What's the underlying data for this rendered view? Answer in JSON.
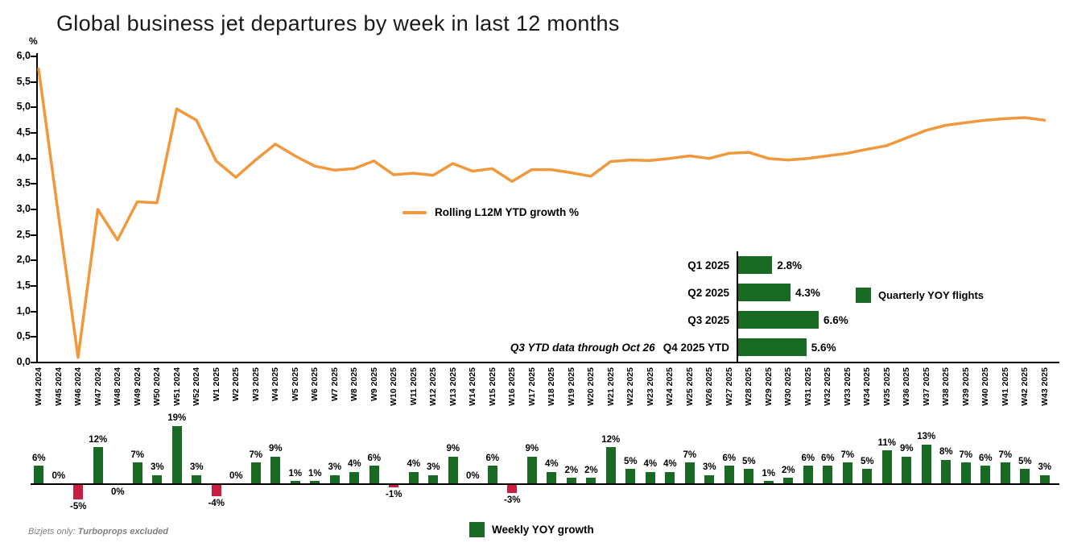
{
  "page": {
    "title": "Global business jet departures by week in last 12 months",
    "footnote_prefix": "Bizjets only: ",
    "footnote_bold": "Turboprops excluded"
  },
  "colors": {
    "orange": "#F2983C",
    "green": "#196B24",
    "red": "#C81E41",
    "axis": "#000000"
  },
  "chart_data": [
    {
      "type": "line",
      "name": "rolling-l12m-ytd-growth",
      "legend": "Rolling L12M YTD growth %",
      "unit_label": "%",
      "ylim": [
        0,
        6
      ],
      "ytick_step": 0.5,
      "ytick_labels_top_to_bottom": [
        "6,0",
        "5,5",
        "5,0",
        "4,5",
        "4,0",
        "3,5",
        "3,0",
        "2,5",
        "2,0",
        "1,5",
        "1,0",
        "0,5",
        "0,0"
      ],
      "grid": false,
      "legend_position": "center-left of plot",
      "x": [
        "W44 2024",
        "W45 2024",
        "W46 2024",
        "W47 2024",
        "W48 2024",
        "W49 2024",
        "W50 2024",
        "W51 2024",
        "W52 2024",
        "W1 2025",
        "W2 2025",
        "W3 2025",
        "W4 2025",
        "W5 2025",
        "W6 2025",
        "W7 2025",
        "W8 2025",
        "W9 2025",
        "W10 2025",
        "W11 2025",
        "W12 2025",
        "W13 2025",
        "W14 2025",
        "W15 2025",
        "W16 2025",
        "W17 2025",
        "W18 2025",
        "W19 2025",
        "W20 2025",
        "W21 2025",
        "W22 2025",
        "W23 2025",
        "W24 2025",
        "W25 2025",
        "W26 2025",
        "W27 2025",
        "W28 2025",
        "W29 2025",
        "W30 2025",
        "W31 2025",
        "W32 2025",
        "W33 2025",
        "W34 2025",
        "W35 2025",
        "W36 2025",
        "W37 2025",
        "W38 2025",
        "W39 2025",
        "W40 2025",
        "W41 2025",
        "W42 2025",
        "W43 2025"
      ],
      "values": [
        5.75,
        2.9,
        0.1,
        3.0,
        2.4,
        3.15,
        3.13,
        4.97,
        4.75,
        3.95,
        3.63,
        3.97,
        4.28,
        4.05,
        3.85,
        3.77,
        3.8,
        3.95,
        3.68,
        3.71,
        3.67,
        3.9,
        3.75,
        3.8,
        3.55,
        3.78,
        3.78,
        3.72,
        3.65,
        3.94,
        3.97,
        3.96,
        4.0,
        4.05,
        4.0,
        4.1,
        4.12,
        4.0,
        3.97,
        4.0,
        4.05,
        4.1,
        4.18,
        4.25,
        4.4,
        4.55,
        4.65,
        4.7,
        4.75,
        4.78,
        4.8,
        4.75
      ]
    },
    {
      "type": "bar",
      "name": "weekly-yoy-growth",
      "legend": "Weekly YOY growth",
      "positive_color": "#196B24",
      "negative_color": "#C81E41",
      "categories": [
        "W44 2024",
        "W45 2024",
        "W46 2024",
        "W47 2024",
        "W48 2024",
        "W49 2024",
        "W50 2024",
        "W51 2024",
        "W52 2024",
        "W1 2025",
        "W2 2025",
        "W3 2025",
        "W4 2025",
        "W5 2025",
        "W6 2025",
        "W7 2025",
        "W8 2025",
        "W9 2025",
        "W10 2025",
        "W11 2025",
        "W12 2025",
        "W13 2025",
        "W14 2025",
        "W15 2025",
        "W16 2025",
        "W17 2025",
        "W18 2025",
        "W19 2025",
        "W20 2025",
        "W21 2025",
        "W22 2025",
        "W23 2025",
        "W24 2025",
        "W25 2025",
        "W26 2025",
        "W27 2025",
        "W28 2025",
        "W29 2025",
        "W30 2025",
        "W31 2025",
        "W32 2025",
        "W33 2025",
        "W34 2025",
        "W35 2025",
        "W36 2025",
        "W37 2025",
        "W38 2025",
        "W39 2025",
        "W40 2025",
        "W41 2025",
        "W42 2025",
        "W43 2025"
      ],
      "values": [
        6,
        0.2,
        -5,
        12,
        -0.25,
        7,
        3,
        19,
        3,
        -4,
        0.2,
        7,
        9,
        1,
        1,
        3,
        4,
        6,
        -1,
        4,
        3,
        9,
        0.2,
        6,
        -3,
        9,
        4,
        2,
        2,
        12,
        5,
        4,
        4,
        7,
        3,
        6,
        5,
        1,
        2,
        6,
        6,
        7,
        5,
        11,
        9,
        13,
        8,
        7,
        6,
        7,
        5,
        3
      ],
      "data_labels": [
        "6%",
        "0%",
        "-5%",
        "12%",
        "0%",
        "7%",
        "3%",
        "19%",
        "3%",
        "-4%",
        "0%",
        "7%",
        "9%",
        "1%",
        "1%",
        "3%",
        "4%",
        "6%",
        "-1%",
        "4%",
        "3%",
        "9%",
        "0%",
        "6%",
        "-3%",
        "9%",
        "4%",
        "2%",
        "2%",
        "12%",
        "5%",
        "4%",
        "4%",
        "7%",
        "3%",
        "6%",
        "5%",
        "1%",
        "2%",
        "6%",
        "6%",
        "7%",
        "5%",
        "11%",
        "9%",
        "13%",
        "8%",
        "7%",
        "6%",
        "7%",
        "5%",
        "3%"
      ]
    },
    {
      "type": "bar",
      "name": "quarterly-yoy-flights",
      "orientation": "horizontal",
      "legend": "Quarterly YOY flights",
      "bar_color": "#196B24",
      "note": "Q3 YTD data through Oct 26",
      "categories": [
        "Q1 2025",
        "Q2 2025",
        "Q3 2025",
        "Q4 2025 YTD"
      ],
      "values": [
        2.8,
        4.3,
        6.6,
        5.6
      ],
      "data_labels": [
        "2.8%",
        "4.3%",
        "6.6%",
        "5.6%"
      ]
    }
  ]
}
